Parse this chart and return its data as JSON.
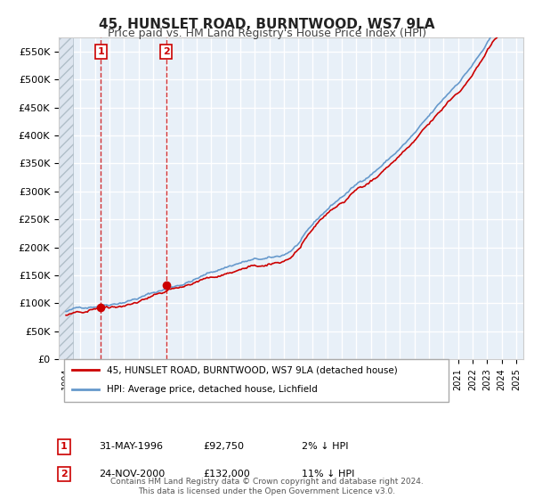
{
  "title": "45, HUNSLET ROAD, BURNTWOOD, WS7 9LA",
  "subtitle": "Price paid vs. HM Land Registry's House Price Index (HPI)",
  "legend_entries": [
    "45, HUNSLET ROAD, BURNTWOOD, WS7 9LA (detached house)",
    "HPI: Average price, detached house, Lichfield"
  ],
  "transactions": [
    {
      "label": "1",
      "date": "31-MAY-1996",
      "price": 92750,
      "pct": "2%",
      "dir": "↓",
      "x_year": 1996.41
    },
    {
      "label": "2",
      "date": "24-NOV-2000",
      "price": 132000,
      "pct": "11%",
      "dir": "↓",
      "x_year": 2000.9
    }
  ],
  "property_line_color": "#cc0000",
  "hpi_line_color": "#6699cc",
  "background_color": "#ffffff",
  "plot_bg_color": "#e8f0f8",
  "hatch_color": "#c8d4e0",
  "grid_color": "#ffffff",
  "transaction_marker_color": "#cc0000",
  "vline_color": "#cc0000",
  "footer": "Contains HM Land Registry data © Crown copyright and database right 2024.\nThis data is licensed under the Open Government Licence v3.0.",
  "ylim": [
    0,
    575000
  ],
  "yticks": [
    0,
    50000,
    100000,
    150000,
    200000,
    250000,
    300000,
    350000,
    400000,
    450000,
    500000,
    550000
  ],
  "xlim_start": 1993.5,
  "xlim_end": 2025.5
}
